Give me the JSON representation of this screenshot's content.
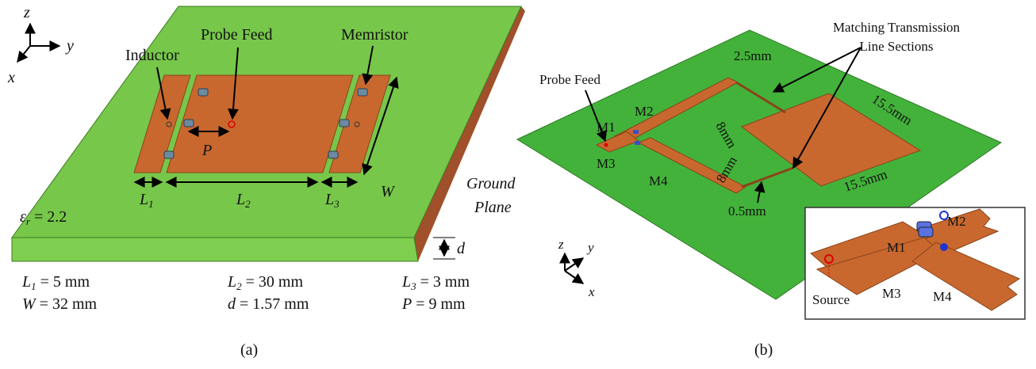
{
  "panel_a": {
    "axes": {
      "z": "z",
      "y": "y",
      "x": "x"
    },
    "labels": {
      "inductor": "Inductor",
      "probe_feed": "Probe Feed",
      "memristor": "Memristor",
      "w": "W",
      "p": "P",
      "l1": {
        "base": "L",
        "sub": "1"
      },
      "l2": {
        "base": "L",
        "sub": "2"
      },
      "l3": {
        "base": "L",
        "sub": "3"
      },
      "ground_plane": [
        "Ground",
        "Plane"
      ],
      "permittivity": {
        "base": "ε",
        "sub": "r",
        "rest": " = 2.2"
      },
      "d": "d"
    },
    "parameters": [
      {
        "base": "L",
        "sub": "1",
        "rest": " = 5 mm"
      },
      {
        "base": "L",
        "sub": "2",
        "rest": " = 30 mm"
      },
      {
        "base": "L",
        "sub": "3",
        "rest": " = 3 mm"
      },
      {
        "base": "W",
        "sub": "",
        "rest": " = 32 mm"
      },
      {
        "base": "d",
        "sub": "",
        "rest": " = 1.57 mm"
      },
      {
        "base": "P",
        "sub": "",
        "rest": " = 9 mm"
      }
    ],
    "caption": "(a)"
  },
  "panel_b": {
    "axes": {
      "z": "z",
      "y": "y",
      "x": "x"
    },
    "labels": {
      "probe_feed": "Probe Feed",
      "matching": [
        "Matching Transmission",
        "Line Sections"
      ],
      "gap": "2.5mm",
      "arm_upper": "8mm",
      "arm_lower": "8mm",
      "side_1": "15.5mm",
      "side_2": "15.5mm",
      "line_width": "0.5mm",
      "m1": "M1",
      "m2": "M2",
      "m3": "M3",
      "m4": "M4"
    },
    "inset": {
      "m2": "M2",
      "m1": "M1",
      "m3": "M3",
      "m4": "M4",
      "source": "Source"
    },
    "caption": "(b)"
  }
}
